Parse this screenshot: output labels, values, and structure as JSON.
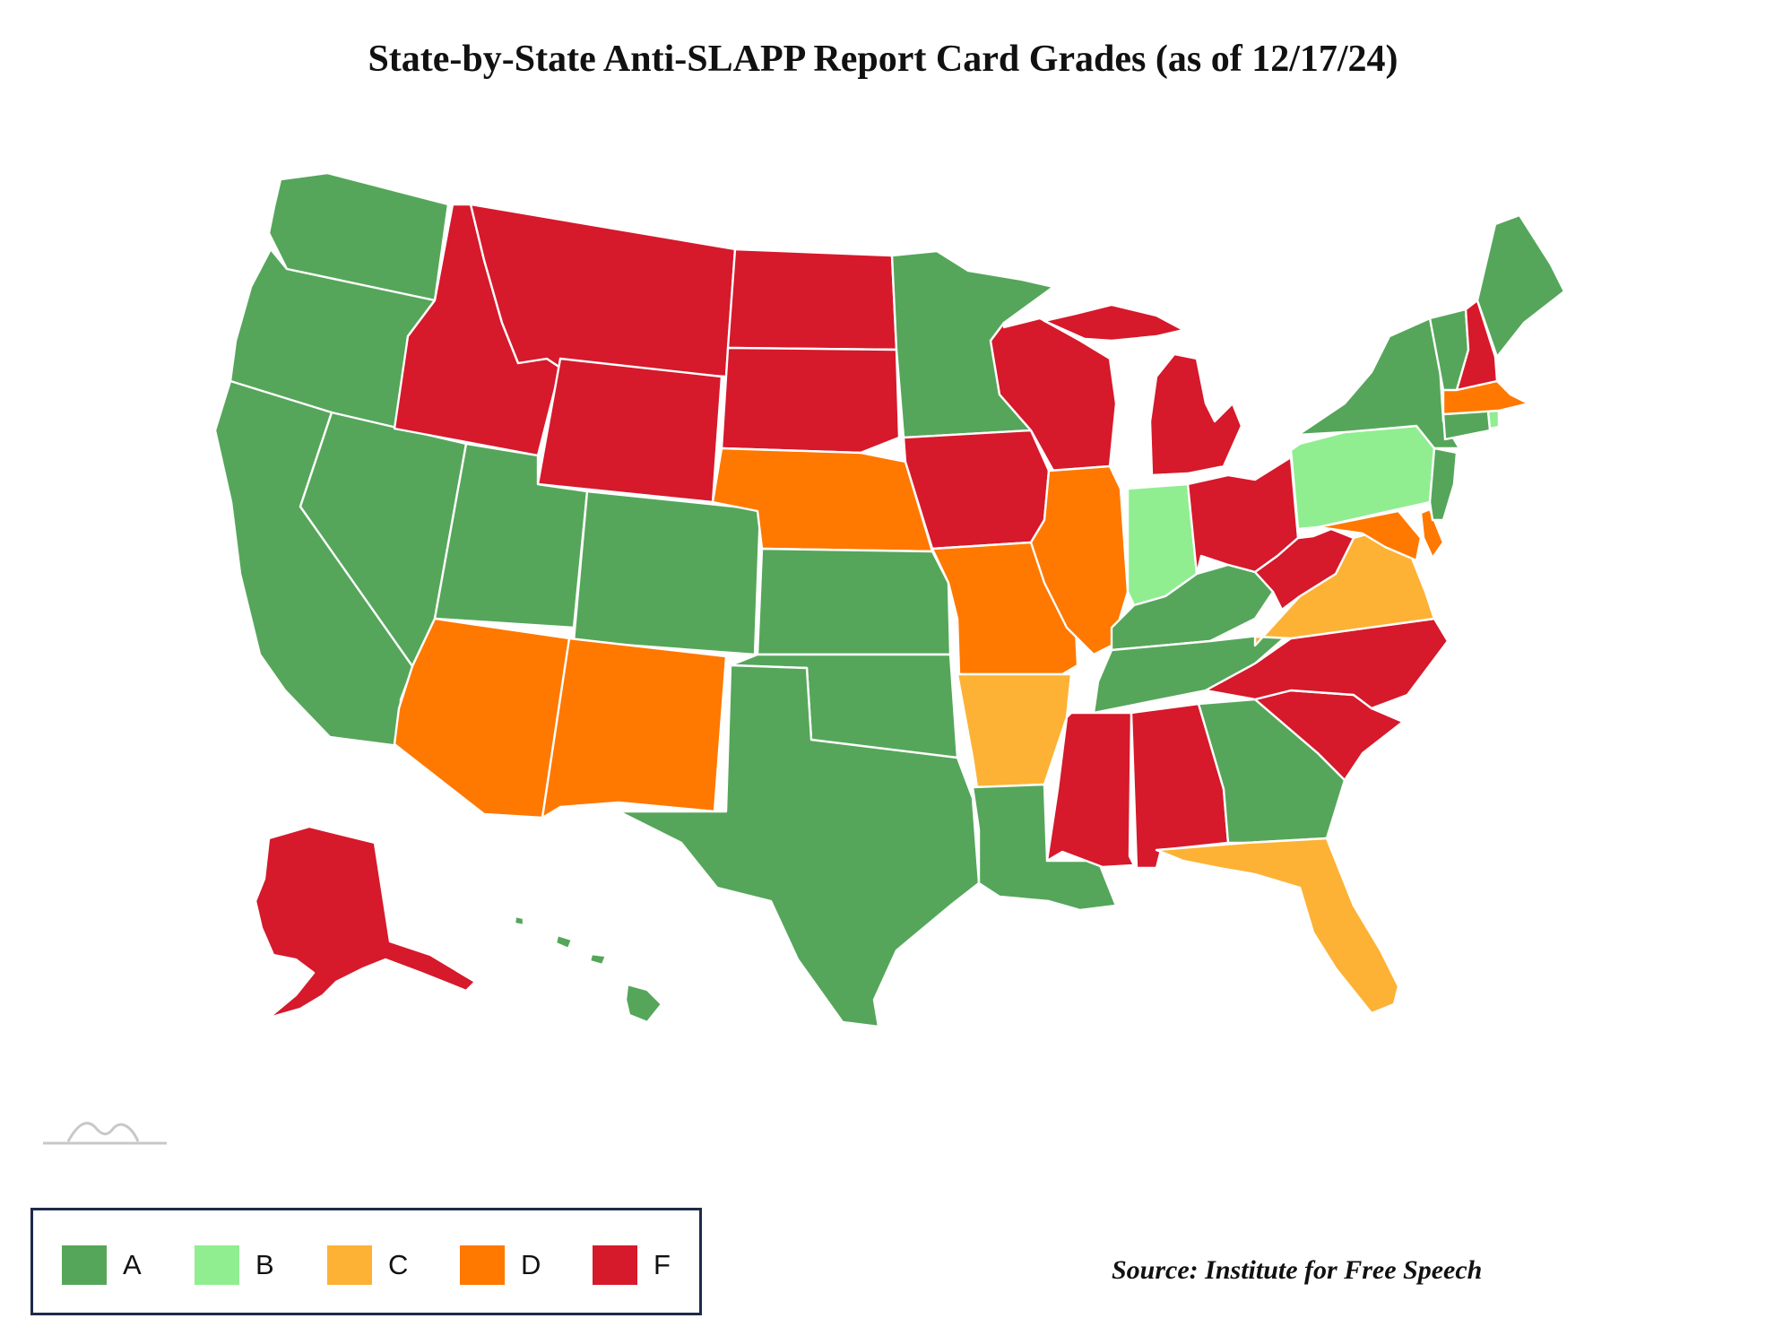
{
  "title": "State-by-State Anti-SLAPP Report Card Grades (as of 12/17/24)",
  "source": "Source: Institute for Free Speech",
  "colors": {
    "A": "#55a65a",
    "B": "#90ee90",
    "C": "#fdb235",
    "D": "#ff7800",
    "F": "#d6192b"
  },
  "legend": [
    {
      "grade": "A",
      "label": "A"
    },
    {
      "grade": "B",
      "label": "B"
    },
    {
      "grade": "C",
      "label": "C"
    },
    {
      "grade": "D",
      "label": "D"
    },
    {
      "grade": "F",
      "label": "F"
    }
  ],
  "grades": {
    "WA": "A",
    "OR": "A",
    "CA": "A",
    "NV": "A",
    "ID": "F",
    "MT": "F",
    "WY": "F",
    "UT": "A",
    "CO": "A",
    "AZ": "D",
    "NM": "D",
    "ND": "F",
    "SD": "F",
    "NE": "D",
    "KS": "A",
    "OK": "A",
    "TX": "A",
    "MN": "A",
    "IA": "F",
    "MO": "D",
    "AR": "C",
    "LA": "A",
    "WI": "F",
    "IL": "D",
    "MI": "F",
    "IN": "B",
    "OH": "F",
    "KY": "A",
    "TN": "A",
    "MS": "F",
    "AL": "F",
    "GA": "A",
    "FL": "C",
    "SC": "F",
    "NC": "F",
    "VA": "C",
    "WV": "F",
    "MD": "D",
    "DE": "D",
    "PA": "B",
    "NJ": "A",
    "NY": "A",
    "CT": "A",
    "RI": "B",
    "MA": "D",
    "VT": "A",
    "NH": "F",
    "ME": "A",
    "AK": "F",
    "HI": "A"
  }
}
